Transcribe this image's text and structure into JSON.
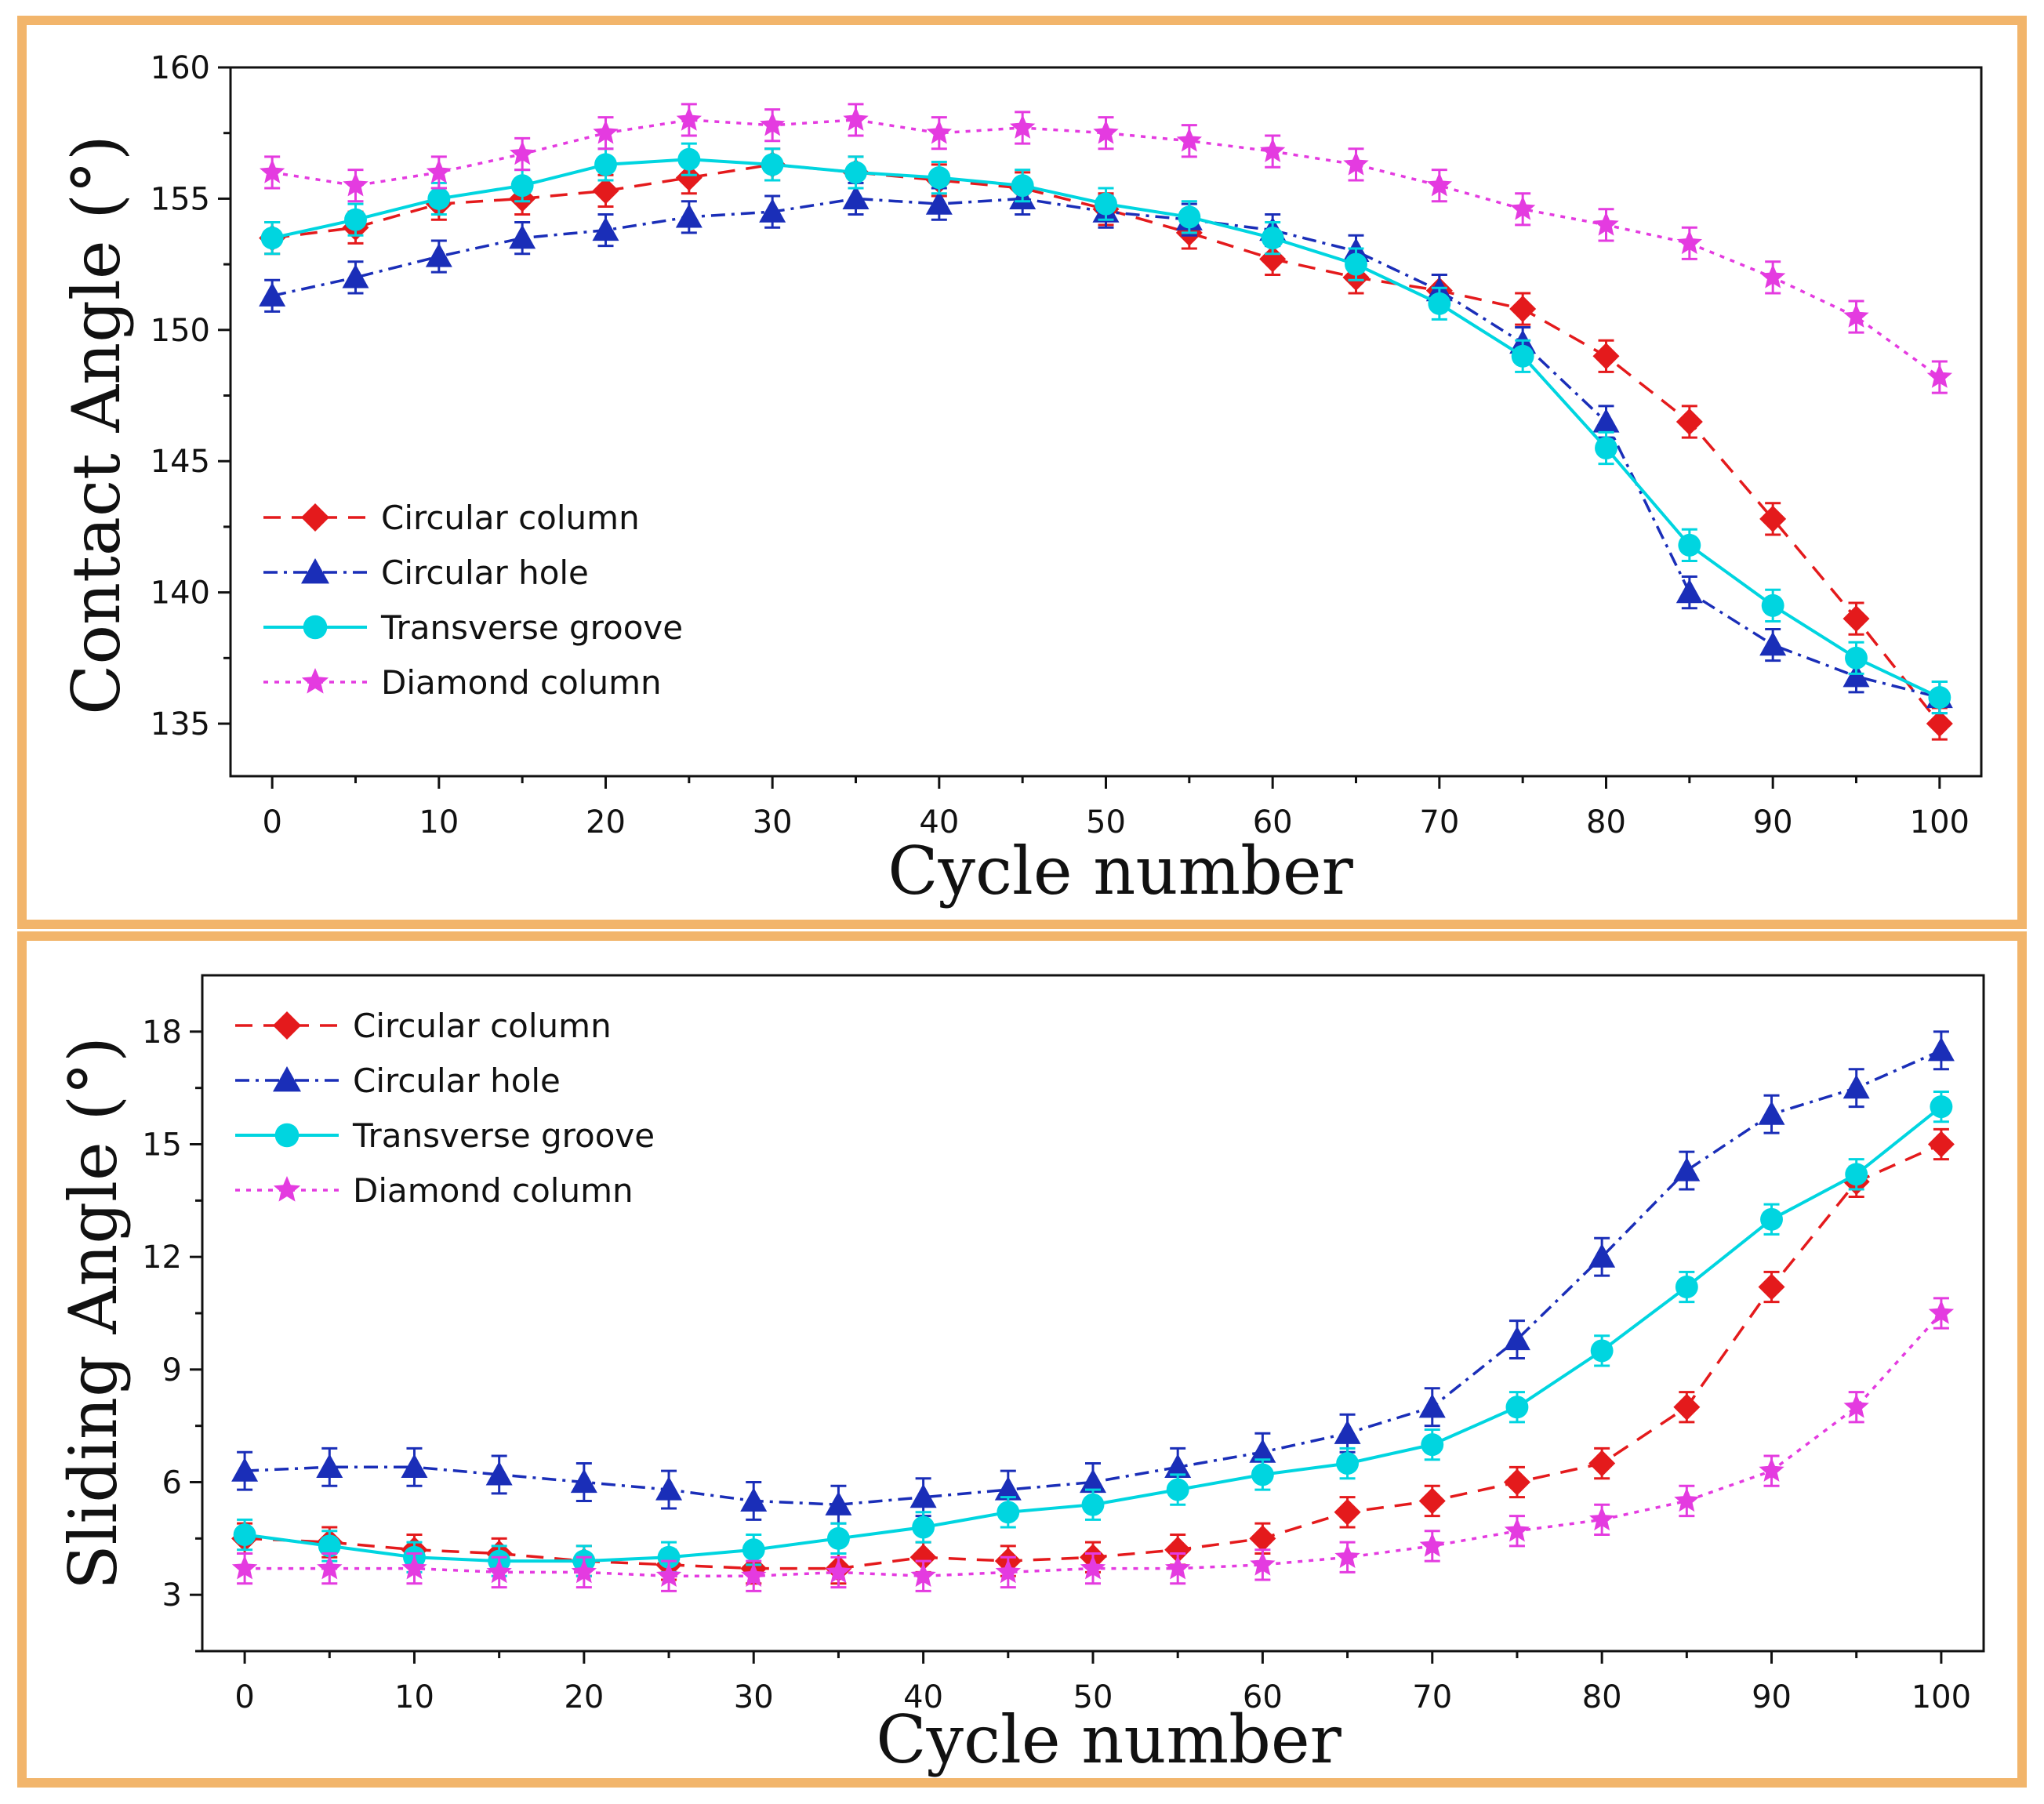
{
  "figure": {
    "colors": {
      "frame": "#f2b56b",
      "circular_column": "#e41a1c",
      "circular_hole": "#1a2eb8",
      "transverse_groove": "#00d5e0",
      "diamond_column": "#e43be0"
    }
  },
  "chart_data": [
    {
      "type": "line",
      "x": [
        0,
        5,
        10,
        15,
        20,
        25,
        30,
        35,
        40,
        45,
        50,
        55,
        60,
        65,
        70,
        75,
        80,
        85,
        90,
        95,
        100
      ],
      "xlabel": "Cycle number",
      "ylabel": "Contact Angle (°)",
      "xlim": [
        -2.5,
        102.5
      ],
      "ylim": [
        133,
        160
      ],
      "xticks": [
        0,
        10,
        20,
        30,
        40,
        50,
        60,
        70,
        80,
        90,
        100
      ],
      "xtick_labels": [
        "0",
        "10",
        "20",
        "30",
        "40",
        "50",
        "60",
        "70",
        "80",
        "90",
        "100"
      ],
      "yticks": [
        135,
        140,
        145,
        150,
        155,
        160
      ],
      "ytick_labels": [
        "135",
        "140",
        "145",
        "150",
        "155",
        "160"
      ],
      "legend_position": "lower-left",
      "series": [
        {
          "name": "Circular column",
          "marker": "diamond",
          "line": "dashed",
          "values": [
            153.5,
            153.9,
            154.8,
            155.0,
            155.3,
            155.8,
            156.3,
            156.0,
            155.7,
            155.4,
            154.6,
            153.7,
            152.7,
            152.0,
            151.5,
            150.8,
            149.0,
            146.5,
            142.8,
            139.0,
            135.0
          ],
          "errors": [
            0.6,
            0.6,
            0.6,
            0.6,
            0.6,
            0.6,
            0.6,
            0.6,
            0.6,
            0.6,
            0.6,
            0.6,
            0.6,
            0.6,
            0.6,
            0.6,
            0.6,
            0.6,
            0.6,
            0.6,
            0.6
          ]
        },
        {
          "name": "Circular hole",
          "marker": "triangle",
          "line": "dashdot",
          "values": [
            151.3,
            152.0,
            152.8,
            153.5,
            153.8,
            154.3,
            154.5,
            155.0,
            154.8,
            155.0,
            154.5,
            154.2,
            153.8,
            153.0,
            151.5,
            149.5,
            146.5,
            140.0,
            138.0,
            136.8,
            136.0
          ],
          "errors": [
            0.6,
            0.6,
            0.6,
            0.6,
            0.6,
            0.6,
            0.6,
            0.6,
            0.6,
            0.6,
            0.6,
            0.6,
            0.6,
            0.6,
            0.6,
            0.6,
            0.6,
            0.6,
            0.6,
            0.6,
            0.6
          ]
        },
        {
          "name": "Transverse groove",
          "marker": "circle",
          "line": "solid",
          "values": [
            153.5,
            154.2,
            155.0,
            155.5,
            156.3,
            156.5,
            156.3,
            156.0,
            155.8,
            155.5,
            154.8,
            154.3,
            153.5,
            152.5,
            151.0,
            149.0,
            145.5,
            141.8,
            139.5,
            137.5,
            136.0
          ],
          "errors": [
            0.6,
            0.6,
            0.6,
            0.6,
            0.6,
            0.6,
            0.6,
            0.6,
            0.6,
            0.6,
            0.6,
            0.6,
            0.6,
            0.6,
            0.6,
            0.6,
            0.6,
            0.6,
            0.6,
            0.6,
            0.6
          ]
        },
        {
          "name": "Diamond column",
          "marker": "star",
          "line": "dotted",
          "values": [
            156.0,
            155.5,
            156.0,
            156.7,
            157.5,
            158.0,
            157.8,
            158.0,
            157.5,
            157.7,
            157.5,
            157.2,
            156.8,
            156.3,
            155.5,
            154.6,
            154.0,
            153.3,
            152.0,
            150.5,
            148.2
          ],
          "errors": [
            0.6,
            0.6,
            0.6,
            0.6,
            0.6,
            0.6,
            0.6,
            0.6,
            0.6,
            0.6,
            0.6,
            0.6,
            0.6,
            0.6,
            0.6,
            0.6,
            0.6,
            0.6,
            0.6,
            0.6,
            0.6
          ]
        }
      ]
    },
    {
      "type": "line",
      "x": [
        0,
        5,
        10,
        15,
        20,
        25,
        30,
        35,
        40,
        45,
        50,
        55,
        60,
        65,
        70,
        75,
        80,
        85,
        90,
        95,
        100
      ],
      "xlabel": "Cycle number",
      "ylabel": "Sliding Angle (°)",
      "xlim": [
        -2.5,
        102.5
      ],
      "ylim": [
        1.5,
        19.5
      ],
      "xticks": [
        0,
        10,
        20,
        30,
        40,
        50,
        60,
        70,
        80,
        90,
        100
      ],
      "xtick_labels": [
        "0",
        "10",
        "20",
        "30",
        "40",
        "50",
        "60",
        "70",
        "80",
        "90",
        "100"
      ],
      "yticks": [
        3,
        6,
        9,
        12,
        15,
        18
      ],
      "ytick_labels": [
        "3",
        "6",
        "9",
        "12",
        "15",
        "18"
      ],
      "legend_position": "top-left",
      "series": [
        {
          "name": "Circular column",
          "marker": "diamond",
          "line": "dashed",
          "values": [
            4.5,
            4.4,
            4.2,
            4.1,
            3.9,
            3.8,
            3.7,
            3.7,
            4.0,
            3.9,
            4.0,
            4.2,
            4.5,
            5.2,
            5.5,
            6.0,
            6.5,
            8.0,
            11.2,
            14.0,
            15.0
          ],
          "errors": [
            0.4,
            0.4,
            0.4,
            0.4,
            0.4,
            0.4,
            0.4,
            0.4,
            0.4,
            0.4,
            0.4,
            0.4,
            0.4,
            0.4,
            0.4,
            0.4,
            0.4,
            0.4,
            0.4,
            0.4,
            0.4
          ]
        },
        {
          "name": "Circular hole",
          "marker": "triangle",
          "line": "dashdot",
          "values": [
            6.3,
            6.4,
            6.4,
            6.2,
            6.0,
            5.8,
            5.5,
            5.4,
            5.6,
            5.8,
            6.0,
            6.4,
            6.8,
            7.3,
            8.0,
            9.8,
            12.0,
            14.3,
            15.8,
            16.5,
            17.5
          ],
          "errors": [
            0.5,
            0.5,
            0.5,
            0.5,
            0.5,
            0.5,
            0.5,
            0.5,
            0.5,
            0.5,
            0.5,
            0.5,
            0.5,
            0.5,
            0.5,
            0.5,
            0.5,
            0.5,
            0.5,
            0.5,
            0.5
          ]
        },
        {
          "name": "Transverse groove",
          "marker": "circle",
          "line": "solid",
          "values": [
            4.6,
            4.3,
            4.0,
            3.9,
            3.9,
            4.0,
            4.2,
            4.5,
            4.8,
            5.2,
            5.4,
            5.8,
            6.2,
            6.5,
            7.0,
            8.0,
            9.5,
            11.2,
            13.0,
            14.2,
            16.0
          ],
          "errors": [
            0.4,
            0.4,
            0.4,
            0.4,
            0.4,
            0.4,
            0.4,
            0.4,
            0.4,
            0.4,
            0.4,
            0.4,
            0.4,
            0.4,
            0.4,
            0.4,
            0.4,
            0.4,
            0.4,
            0.4,
            0.4
          ]
        },
        {
          "name": "Diamond column",
          "marker": "star",
          "line": "dotted",
          "values": [
            3.7,
            3.7,
            3.7,
            3.6,
            3.6,
            3.5,
            3.5,
            3.6,
            3.5,
            3.6,
            3.7,
            3.7,
            3.8,
            4.0,
            4.3,
            4.7,
            5.0,
            5.5,
            6.3,
            8.0,
            10.5
          ],
          "errors": [
            0.4,
            0.4,
            0.4,
            0.4,
            0.4,
            0.4,
            0.4,
            0.4,
            0.4,
            0.4,
            0.4,
            0.4,
            0.4,
            0.4,
            0.4,
            0.4,
            0.4,
            0.4,
            0.4,
            0.4,
            0.4
          ]
        }
      ]
    }
  ]
}
